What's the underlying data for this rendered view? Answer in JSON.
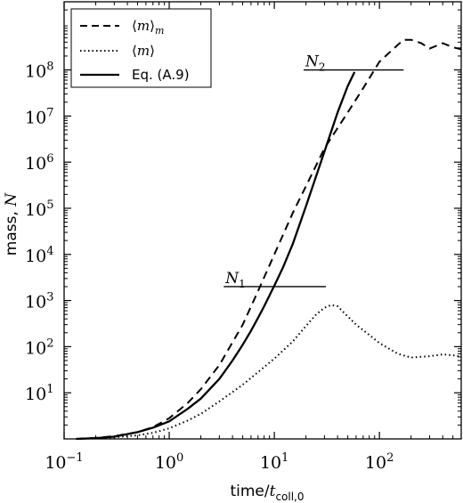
{
  "chart_data": {
    "type": "line",
    "xlabel": "time/t_coll,0",
    "ylabel": "mass, N",
    "xscale": "log",
    "yscale": "log",
    "xlim": [
      0.1,
      600
    ],
    "ylim": [
      1,
      3000000000
    ],
    "x_ticks": [
      {
        "value": 0.1,
        "base": "10",
        "exp": "−1"
      },
      {
        "value": 1,
        "base": "10",
        "exp": "0"
      },
      {
        "value": 10,
        "base": "10",
        "exp": "1"
      },
      {
        "value": 100,
        "base": "10",
        "exp": "2"
      }
    ],
    "y_ticks": [
      {
        "value": 10,
        "base": "10",
        "exp": "1"
      },
      {
        "value": 100,
        "base": "10",
        "exp": "2"
      },
      {
        "value": 1000,
        "base": "10",
        "exp": "3"
      },
      {
        "value": 10000,
        "base": "10",
        "exp": "4"
      },
      {
        "value": 100000,
        "base": "10",
        "exp": "5"
      },
      {
        "value": 1000000,
        "base": "10",
        "exp": "6"
      },
      {
        "value": 10000000,
        "base": "10",
        "exp": "7"
      },
      {
        "value": 100000000,
        "base": "10",
        "exp": "8"
      }
    ],
    "legend": {
      "position": "top-left",
      "entries": [
        {
          "label": "⟨m⟩_m",
          "style": "dashed"
        },
        {
          "label": "⟨m⟩",
          "style": "dotted"
        },
        {
          "label": "Eq. (A.9)",
          "style": "solid"
        }
      ]
    },
    "series": [
      {
        "name": "⟨m⟩_m",
        "style": "dashed",
        "x": [
          0.13,
          0.2,
          0.3,
          0.5,
          0.7,
          1,
          1.5,
          2,
          3,
          5,
          7,
          10,
          15,
          20,
          30,
          50,
          70,
          100,
          150,
          170,
          200,
          250,
          300,
          400,
          500,
          600
        ],
        "y": [
          1.0,
          1.05,
          1.15,
          1.4,
          1.8,
          2.8,
          6,
          12,
          40,
          300,
          1600,
          10000,
          80000,
          300000,
          2000000,
          12000000,
          40000000,
          150000000,
          350000000,
          450000000,
          450000000,
          380000000,
          290000000,
          380000000,
          310000000,
          280000000
        ]
      },
      {
        "name": "⟨m⟩",
        "style": "dotted",
        "x": [
          0.13,
          0.2,
          0.3,
          0.5,
          0.7,
          1,
          1.5,
          2,
          3,
          5,
          7,
          10,
          15,
          20,
          25,
          30,
          35,
          40,
          50,
          60,
          80,
          100,
          150,
          200,
          300,
          400,
          500,
          600
        ],
        "y": [
          1.0,
          1.03,
          1.08,
          1.2,
          1.35,
          1.7,
          2.5,
          3.5,
          6.5,
          15,
          28,
          55,
          130,
          280,
          500,
          700,
          800,
          750,
          450,
          300,
          180,
          120,
          70,
          58,
          62,
          68,
          65,
          60
        ]
      },
      {
        "name": "Eq. (A.9)",
        "style": "solid",
        "x": [
          0.13,
          0.2,
          0.3,
          0.5,
          0.7,
          1,
          1.5,
          2,
          3,
          4,
          5,
          6,
          7,
          8,
          10,
          12,
          15,
          20,
          25,
          30,
          40,
          50,
          58
        ],
        "y": [
          1.0,
          1.04,
          1.12,
          1.4,
          1.75,
          2.4,
          4.5,
          7.5,
          20,
          50,
          110,
          220,
          420,
          750,
          2100,
          5000,
          17000,
          110000,
          500000,
          1700000,
          12000000,
          45000000,
          90000000
        ]
      }
    ],
    "annotations": [
      {
        "label": "N",
        "sub": "1",
        "x_range": [
          3.3,
          31
        ],
        "y": 2000
      },
      {
        "label": "N",
        "sub": "2",
        "x_range": [
          19,
          170
        ],
        "y": 100000000
      }
    ]
  }
}
